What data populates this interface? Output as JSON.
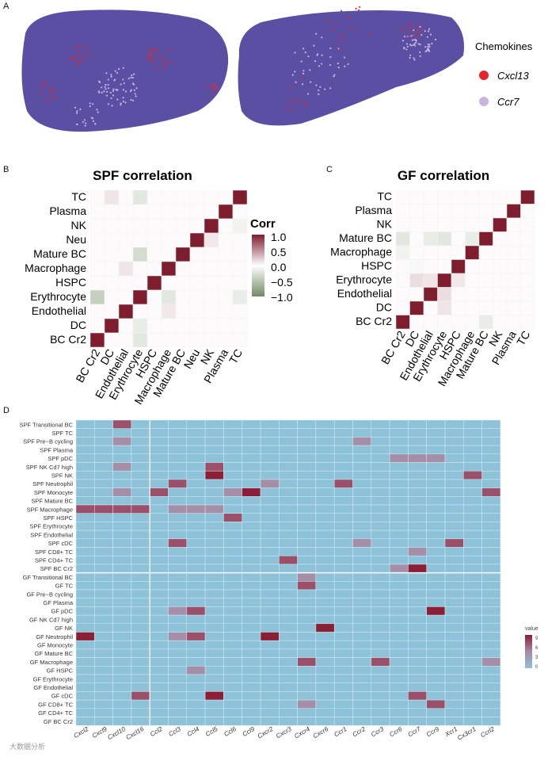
{
  "panels": {
    "a": "A",
    "b": "B",
    "c": "C",
    "d": "D"
  },
  "panel_a": {
    "legend_title": "Chemokines",
    "legend_items": [
      {
        "label": "Cxcl13",
        "color": "#e8252b"
      },
      {
        "label": "Ccr7",
        "color": "#c7b5e0"
      }
    ],
    "tissue_color": "#5a4fa3"
  },
  "panel_b": {
    "title": "SPF correlation",
    "rows_top_to_bottom": [
      "TC",
      "Plasma",
      "NK",
      "Neu",
      "Mature BC",
      "Macrophage",
      "HSPC",
      "Erythrocyte",
      "Endothelial",
      "DC",
      "BC Cr2"
    ],
    "cols_left_to_right": [
      "BC Cr2",
      "DC",
      "Endothelial",
      "Erythrocyte",
      "HSPC",
      "Macrophage",
      "Mature BC",
      "Neu",
      "NK",
      "Plasma",
      "TC"
    ]
  },
  "panel_c": {
    "title": "GF correlation",
    "rows_top_to_bottom": [
      "TC",
      "Plasma",
      "NK",
      "Mature BC",
      "Macrophage",
      "HSPC",
      "Erythrocyte",
      "Endothelial",
      "DC",
      "BC Cr2"
    ],
    "cols_left_to_right": [
      "BC Cr2",
      "DC",
      "Endothelial",
      "Erythrocyte",
      "HSPC",
      "Macrophage",
      "Mature BC",
      "NK",
      "Plasma",
      "TC"
    ]
  },
  "corr_legend": {
    "title": "Corr",
    "ticks": [
      "1.0",
      "0.5",
      "0.0",
      "−0.5",
      "−1.0"
    ],
    "high_color": "#7d1d2d",
    "mid_color": "#ffffff",
    "low_color": "#6f8a63"
  },
  "panel_d": {
    "rows": [
      "SPF Transitional BC",
      "SPF TC",
      "SPF Pre−B cycling",
      "SPF Plasma",
      "SPF pDC",
      "SPF NK Cd7 high",
      "SPF NK",
      "SPF Neutrophil",
      "SPF Monocyte",
      "SPF Mature BC",
      "SPF Macrophage",
      "SPF HSPC",
      "SPF Erythrocyte",
      "SPF Endothelial",
      "SPF cDC",
      "SPF CD8+ TC",
      "SPF CD4+ TC",
      "SPF BC Cr2",
      "GF Transitional BC",
      "GF TC",
      "GF Pre−B cycling",
      "GF Plasma",
      "GF pDC",
      "GF NK Cd7 high",
      "GF NK",
      "GF Neutrophil",
      "GF Monocyte",
      "GF Mature BC",
      "GF Macrophage",
      "GF HSPC",
      "GF Erythrocyte",
      "GF Endothelial",
      "GF cDC",
      "GF CD8+ TC",
      "GF CD4+ TC",
      "GF BC Cr2"
    ],
    "cols": [
      "Cxcl2",
      "Cxcl9",
      "Cxcl10",
      "Cxcl16",
      "Ccl2",
      "Ccl3",
      "Ccl4",
      "Ccl5",
      "Ccl6",
      "Ccl9",
      "Cxcr2",
      "Cxcr3",
      "Cxcr4",
      "Cxcr6",
      "Ccr1",
      "Ccr2",
      "Ccr3",
      "Ccr6",
      "Ccr7",
      "Ccr9",
      "Xcr1",
      "Cx3cr1",
      "Ccrl2"
    ],
    "legend_title": "value",
    "legend_ticks": [
      "9",
      "6",
      "3",
      "0"
    ],
    "base_color": "#8dc2d9",
    "high_color": "#8b1f35"
  },
  "watermark": "大数据分析"
}
